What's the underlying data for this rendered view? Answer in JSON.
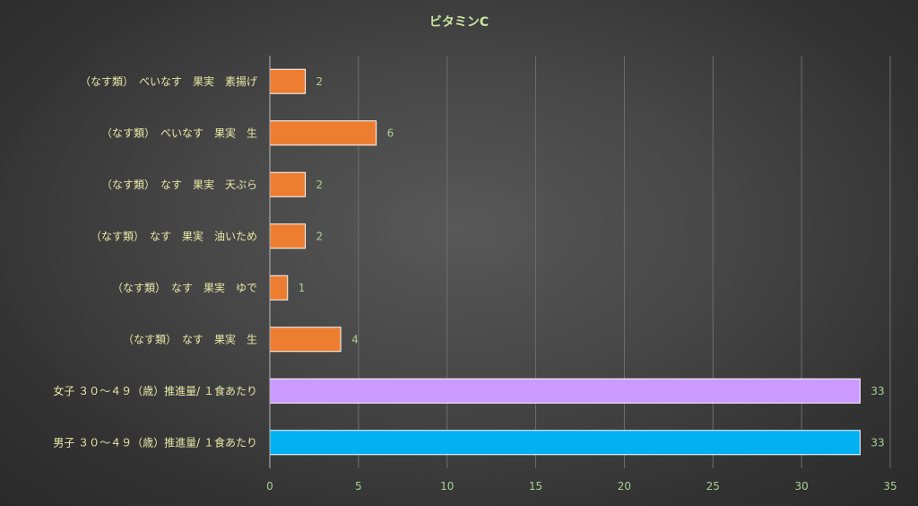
{
  "chart_data": {
    "type": "bar",
    "orientation": "horizontal",
    "title": "ビタミンC",
    "xlabel": "",
    "ylabel": "",
    "xlim": [
      0,
      35
    ],
    "x_ticks": [
      0,
      5,
      10,
      15,
      20,
      25,
      30,
      35
    ],
    "grid": "vertical",
    "legend": "none",
    "categories": [
      "（なす類）　べいなす　果実　素揚げ",
      "（なす類）　べいなす　果実　生",
      "（なす類）　なす　果実　天ぷら",
      "（なす類）　なす　果実　油いため",
      "（なす類）　なす　果実　ゆで",
      "（なす類）　なす　果実　生",
      "女子 ３０～４９（歳）推進量/ １食あたり",
      "男子 ３０～４９（歳）推進量/ １食あたり"
    ],
    "values": [
      2,
      6,
      2,
      2,
      1,
      4,
      33.3,
      33.3
    ],
    "value_labels": [
      "2",
      "6",
      "2",
      "2",
      "1",
      "4",
      "33",
      "33"
    ],
    "bar_colors": [
      "#ed7d31",
      "#ed7d31",
      "#ed7d31",
      "#ed7d31",
      "#ed7d31",
      "#ed7d31",
      "#cc99ff",
      "#00b0f0"
    ]
  },
  "colors": {
    "category_text": "#e8e8a8",
    "tick_text": "#a9d08e",
    "value_text": "#a9d08e",
    "title_text": "#c8e5a0",
    "grid": "#6e6e6e",
    "axis": "#b8b8b8"
  }
}
